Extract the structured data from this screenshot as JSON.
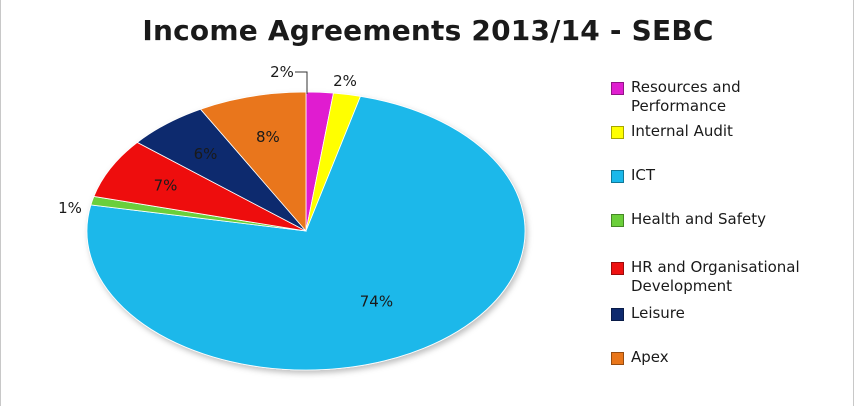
{
  "chart_data": {
    "type": "pie",
    "title": "Income Agreements 2013/14 - SEBC",
    "legend_position": "right",
    "slices": [
      {
        "name": "Resources and Performance",
        "value": 2,
        "label": "2%",
        "color": "#e01fd0"
      },
      {
        "name": "Internal Audit",
        "value": 2,
        "label": "2%",
        "color": "#ffff00"
      },
      {
        "name": "ICT",
        "value": 74,
        "label": "74%",
        "color": "#1ab8ea"
      },
      {
        "name": "Health and Safety",
        "value": 1,
        "label": "1%",
        "color": "#6bcf3a"
      },
      {
        "name": "HR and Organisational Development",
        "value": 7,
        "label": "7%",
        "color": "#ee1111"
      },
      {
        "name": "Leisure",
        "value": 6,
        "label": "6%",
        "color": "#0e2a6e"
      },
      {
        "name": "Apex",
        "value": 8,
        "label": "8%",
        "color": "#e9761a"
      }
    ]
  }
}
